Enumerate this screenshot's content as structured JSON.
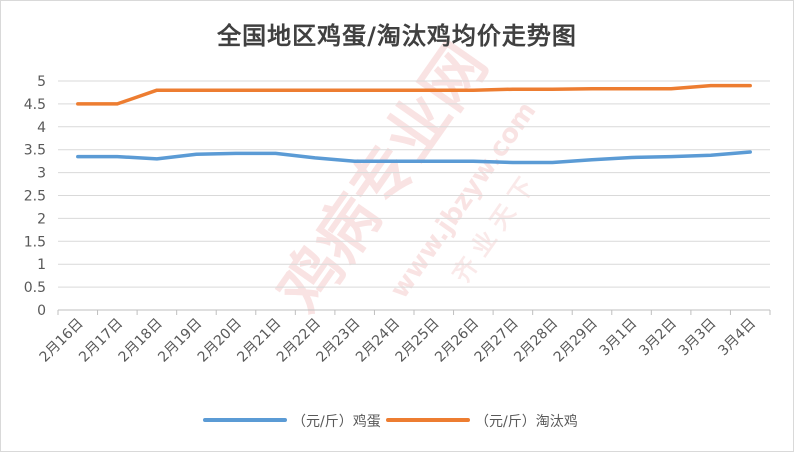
{
  "chart_data": {
    "type": "line",
    "title": "全国地区鸡蛋/淘汰鸡均价走势图",
    "categories": [
      "2月16日",
      "2月17日",
      "2月18日",
      "2月19日",
      "2月20日",
      "2月21日",
      "2月22日",
      "2月23日",
      "2月24日",
      "2月25日",
      "2月26日",
      "2月27日",
      "2月28日",
      "2月29日",
      "3月1日",
      "3月2日",
      "3月3日",
      "3月4日"
    ],
    "x": [
      0,
      1,
      2,
      3,
      4,
      5,
      6,
      7,
      8,
      9,
      10,
      11,
      12,
      13,
      14,
      15,
      16,
      17
    ],
    "series": [
      {
        "name": "（元/斤）鸡蛋",
        "color": "#5b9bd5",
        "points": [
          [
            0,
            3.35
          ],
          [
            1,
            3.35
          ],
          [
            2,
            3.3
          ],
          [
            3,
            3.4
          ],
          [
            4,
            3.42
          ],
          [
            5,
            3.42
          ],
          [
            6,
            3.32
          ],
          [
            7,
            3.25
          ],
          [
            8,
            3.25
          ],
          [
            9,
            3.25
          ],
          [
            10,
            3.25
          ],
          [
            11,
            3.22
          ],
          [
            12,
            3.22
          ],
          [
            13,
            3.28
          ],
          [
            14,
            3.33
          ],
          [
            15,
            3.35
          ],
          [
            16,
            3.38
          ],
          [
            17,
            3.45
          ]
        ]
      },
      {
        "name": "（元/斤）淘汰鸡",
        "color": "#ed7d31",
        "points": [
          [
            0,
            4.5
          ],
          [
            1,
            4.5
          ],
          [
            2,
            4.8
          ],
          [
            3,
            4.8
          ],
          [
            4,
            4.8
          ],
          [
            5,
            4.8
          ],
          [
            6,
            4.8
          ],
          [
            7,
            4.8
          ],
          [
            8,
            4.8
          ],
          [
            9,
            4.8
          ],
          [
            10,
            4.8
          ],
          [
            11,
            4.82
          ],
          [
            12,
            4.82
          ],
          [
            13,
            4.83
          ],
          [
            14,
            4.83
          ],
          [
            15,
            4.83
          ],
          [
            16,
            4.9
          ],
          [
            17,
            4.9
          ]
        ]
      }
    ],
    "yticks": [
      "0",
      "0.5",
      "1",
      "1.5",
      "2",
      "2.5",
      "3",
      "3.5",
      "4",
      "4.5",
      "5"
    ],
    "ylim": [
      0,
      5
    ],
    "grid": true,
    "legend_position": "bottom",
    "xlabel": "",
    "ylabel": ""
  },
  "watermark": {
    "text": "鸡病专业网",
    "url": "www.jbzyw.com",
    "slogan": "齐 业 天 下",
    "color": "#f2c2c2"
  }
}
